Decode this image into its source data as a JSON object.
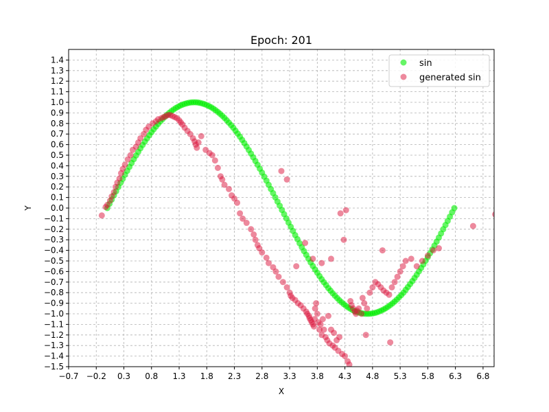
{
  "chart_data": {
    "type": "scatter",
    "title": "Epoch: 201",
    "xlabel": "X",
    "ylabel": "Y",
    "xlim": [
      -0.7,
      7.0
    ],
    "ylim": [
      -1.5,
      1.5
    ],
    "xticks": [
      -0.7,
      -0.2,
      0.3,
      0.8,
      1.3,
      1.8,
      2.3,
      2.8,
      3.3,
      3.8,
      4.3,
      4.8,
      5.3,
      5.8,
      6.3,
      6.8
    ],
    "xtick_labels": [
      "−0.7",
      "−0.2",
      "0.3",
      "0.8",
      "1.3",
      "1.8",
      "2.3",
      "2.8",
      "3.3",
      "3.8",
      "4.3",
      "4.8",
      "5.3",
      "5.8",
      "6.3",
      "6.8"
    ],
    "yticks": [
      -1.5,
      -1.4,
      -1.3,
      -1.2,
      -1.1,
      -1.0,
      -0.9,
      -0.8,
      -0.7,
      -0.6,
      -0.5,
      -0.4,
      -0.3,
      -0.2,
      -0.1,
      0.0,
      0.1,
      0.2,
      0.3,
      0.4,
      0.5,
      0.6,
      0.7,
      0.8,
      0.9,
      1.0,
      1.1,
      1.2,
      1.3,
      1.4
    ],
    "ytick_labels": [
      "−1.5",
      "−1.4",
      "−1.3",
      "−1.2",
      "−1.1",
      "−1.0",
      "−0.9",
      "−0.8",
      "−0.7",
      "−0.6",
      "−0.5",
      "−0.4",
      "−0.3",
      "−0.2",
      "−0.1",
      "0.0",
      "0.1",
      "0.2",
      "0.3",
      "0.4",
      "0.5",
      "0.6",
      "0.7",
      "0.8",
      "0.9",
      "1.0",
      "1.1",
      "1.2",
      "1.3",
      "1.4"
    ],
    "grid": true,
    "legend_position": "top-right",
    "series": [
      {
        "name": "sin",
        "color": "#00ee00",
        "x": [
          0.0,
          0.04,
          0.08,
          0.12,
          0.16,
          0.2,
          0.24,
          0.28,
          0.32,
          0.36,
          0.4,
          0.44,
          0.48,
          0.52,
          0.56,
          0.6,
          0.64,
          0.68,
          0.72,
          0.76,
          0.8,
          0.84,
          0.88,
          0.92,
          0.96,
          1.0,
          1.04,
          1.08,
          1.12,
          1.16,
          1.2,
          1.24,
          1.28,
          1.32,
          1.36,
          1.4,
          1.44,
          1.48,
          1.52,
          1.56,
          1.6,
          1.64,
          1.68,
          1.72,
          1.76,
          1.8,
          1.84,
          1.88,
          1.92,
          1.96,
          2.0,
          2.04,
          2.08,
          2.12,
          2.16,
          2.2,
          2.24,
          2.28,
          2.32,
          2.36,
          2.4,
          2.44,
          2.48,
          2.52,
          2.56,
          2.6,
          2.64,
          2.68,
          2.72,
          2.76,
          2.8,
          2.84,
          2.88,
          2.92,
          2.96,
          3.0,
          3.04,
          3.08,
          3.12,
          3.16,
          3.2,
          3.24,
          3.28,
          3.32,
          3.36,
          3.4,
          3.44,
          3.48,
          3.52,
          3.56,
          3.6,
          3.64,
          3.68,
          3.72,
          3.76,
          3.8,
          3.84,
          3.88,
          3.92,
          3.96,
          4.0,
          4.04,
          4.08,
          4.12,
          4.16,
          4.2,
          4.24,
          4.28,
          4.32,
          4.36,
          4.4,
          4.44,
          4.48,
          4.52,
          4.56,
          4.6,
          4.64,
          4.68,
          4.72,
          4.76,
          4.8,
          4.84,
          4.88,
          4.92,
          4.96,
          5.0,
          5.04,
          5.08,
          5.12,
          5.16,
          5.2,
          5.24,
          5.28,
          5.32,
          5.36,
          5.4,
          5.44,
          5.48,
          5.52,
          5.56,
          5.6,
          5.64,
          5.68,
          5.72,
          5.76,
          5.8,
          5.84,
          5.88,
          5.92,
          5.96,
          6.0,
          6.04,
          6.08,
          6.12,
          6.16,
          6.2,
          6.24,
          6.28
        ],
        "y": [
          0.0,
          0.04,
          0.08,
          0.12,
          0.159,
          0.199,
          0.238,
          0.276,
          0.315,
          0.352,
          0.389,
          0.426,
          0.462,
          0.497,
          0.531,
          0.565,
          0.597,
          0.629,
          0.659,
          0.689,
          0.717,
          0.745,
          0.771,
          0.796,
          0.819,
          0.841,
          0.862,
          0.882,
          0.9,
          0.917,
          0.932,
          0.946,
          0.958,
          0.969,
          0.978,
          0.985,
          0.991,
          0.996,
          0.999,
          1.0,
          1.0,
          0.998,
          0.994,
          0.989,
          0.982,
          0.974,
          0.964,
          0.953,
          0.94,
          0.925,
          0.909,
          0.892,
          0.873,
          0.853,
          0.831,
          0.808,
          0.784,
          0.759,
          0.732,
          0.704,
          0.675,
          0.645,
          0.614,
          0.582,
          0.549,
          0.515,
          0.48,
          0.445,
          0.409,
          0.372,
          0.335,
          0.297,
          0.259,
          0.22,
          0.18,
          0.141,
          0.101,
          0.061,
          0.022,
          -0.018,
          -0.058,
          -0.098,
          -0.138,
          -0.177,
          -0.216,
          -0.256,
          -0.294,
          -0.333,
          -0.37,
          -0.407,
          -0.443,
          -0.479,
          -0.514,
          -0.548,
          -0.581,
          -0.612,
          -0.643,
          -0.673,
          -0.702,
          -0.729,
          -0.757,
          -0.781,
          -0.806,
          -0.829,
          -0.851,
          -0.872,
          -0.891,
          -0.909,
          -0.925,
          -0.94,
          -0.952,
          -0.965,
          -0.975,
          -0.983,
          -0.989,
          -0.994,
          -0.998,
          -1.0,
          -1.0,
          -0.999,
          -0.996,
          -0.992,
          -0.986,
          -0.978,
          -0.969,
          -0.959,
          -0.947,
          -0.933,
          -0.918,
          -0.902,
          -0.884,
          -0.865,
          -0.844,
          -0.823,
          -0.8,
          -0.773,
          -0.747,
          -0.719,
          -0.691,
          -0.661,
          -0.631,
          -0.599,
          -0.567,
          -0.533,
          -0.499,
          -0.464,
          -0.428,
          -0.392,
          -0.355,
          -0.317,
          -0.279,
          -0.24,
          -0.2,
          -0.16,
          -0.121,
          -0.081,
          -0.04,
          0.0
        ]
      },
      {
        "name": "generated sin",
        "color": "#dc143c",
        "x": [
          -0.1,
          -0.03,
          0.0,
          0.05,
          0.08,
          0.12,
          0.15,
          0.18,
          0.22,
          0.25,
          0.28,
          0.32,
          0.37,
          0.42,
          0.46,
          0.52,
          0.56,
          0.6,
          0.66,
          0.7,
          0.75,
          0.82,
          0.88,
          0.92,
          0.98,
          1.02,
          1.06,
          1.1,
          1.14,
          1.18,
          1.22,
          1.26,
          1.3,
          1.33,
          1.36,
          1.4,
          1.45,
          1.5,
          1.55,
          1.58,
          1.6,
          1.62,
          1.65,
          1.7,
          1.78,
          1.85,
          1.9,
          1.95,
          2.0,
          2.05,
          2.08,
          2.12,
          2.2,
          2.25,
          2.3,
          2.35,
          2.4,
          2.45,
          2.52,
          2.6,
          2.65,
          2.68,
          2.72,
          2.75,
          2.8,
          2.88,
          2.92,
          3.0,
          3.05,
          3.1,
          3.18,
          3.25,
          3.3,
          3.32,
          3.35,
          3.4,
          3.45,
          3.5,
          3.55,
          3.6,
          3.62,
          3.65,
          3.66,
          3.68,
          3.7,
          3.72,
          3.74,
          3.75,
          3.76,
          3.78,
          3.8,
          3.82,
          3.84,
          3.86,
          3.88,
          3.9,
          3.92,
          3.95,
          3.98,
          4.0,
          4.02,
          4.05,
          4.08,
          4.1,
          4.12,
          4.15,
          4.18,
          4.2,
          4.25,
          4.3,
          4.35,
          4.38,
          4.4,
          4.42,
          4.45,
          4.48,
          4.5,
          4.52,
          4.55,
          4.6,
          4.62,
          4.65,
          4.7,
          4.75,
          4.8,
          4.85,
          4.9,
          4.95,
          5.0,
          5.05,
          5.1,
          5.15,
          5.2,
          5.25,
          5.3,
          5.35,
          5.4,
          5.5,
          5.6,
          5.7,
          5.8,
          5.9,
          6.0,
          3.15,
          3.25,
          3.42,
          3.58,
          3.72,
          3.88,
          4.05,
          4.22,
          4.28,
          4.32,
          4.68,
          4.98,
          5.12,
          6.62,
          7.02
        ],
        "y": [
          -0.07,
          0.01,
          0.03,
          0.07,
          0.11,
          0.15,
          0.2,
          0.24,
          0.28,
          0.33,
          0.37,
          0.41,
          0.46,
          0.5,
          0.55,
          0.58,
          0.62,
          0.66,
          0.7,
          0.74,
          0.77,
          0.8,
          0.82,
          0.84,
          0.85,
          0.86,
          0.87,
          0.88,
          0.88,
          0.87,
          0.86,
          0.85,
          0.83,
          0.81,
          0.79,
          0.76,
          0.73,
          0.7,
          0.66,
          0.63,
          0.6,
          0.57,
          0.62,
          0.68,
          0.55,
          0.52,
          0.5,
          0.45,
          0.38,
          0.3,
          0.27,
          0.22,
          0.18,
          0.12,
          0.09,
          0.05,
          -0.05,
          -0.1,
          -0.14,
          -0.2,
          -0.25,
          -0.3,
          -0.35,
          -0.38,
          -0.42,
          -0.47,
          -0.52,
          -0.56,
          -0.6,
          -0.65,
          -0.7,
          -0.75,
          -0.8,
          -0.83,
          -0.85,
          -0.87,
          -0.9,
          -0.92,
          -0.95,
          -0.98,
          -1.0,
          -1.02,
          -1.04,
          -1.06,
          -1.08,
          -1.1,
          -1.12,
          -1.05,
          -0.95,
          -0.9,
          -1.0,
          -1.08,
          -1.15,
          -1.1,
          -1.2,
          -1.05,
          -1.15,
          -1.22,
          -1.25,
          -1.02,
          -1.28,
          -1.15,
          -1.3,
          -1.18,
          -1.32,
          -1.25,
          -1.35,
          -1.22,
          -1.38,
          -1.4,
          -1.45,
          -1.48,
          -0.88,
          -0.92,
          -0.95,
          -0.98,
          -1.0,
          -0.97,
          -0.95,
          -1.0,
          -0.85,
          -0.9,
          -0.95,
          -0.8,
          -0.75,
          -0.7,
          -0.72,
          -0.75,
          -0.78,
          -0.8,
          -0.82,
          -0.75,
          -0.7,
          -0.65,
          -0.6,
          -0.55,
          -0.5,
          -0.48,
          -0.55,
          -0.5,
          -0.45,
          -0.4,
          -0.38,
          0.35,
          0.27,
          -0.55,
          -0.33,
          -0.48,
          -0.52,
          -0.48,
          -0.05,
          -0.3,
          -0.02,
          -1.2,
          -0.4,
          -1.27,
          -0.17,
          -0.06
        ]
      }
    ]
  }
}
